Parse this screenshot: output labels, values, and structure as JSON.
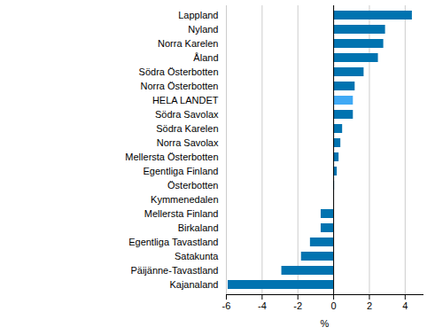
{
  "chart_data": {
    "type": "bar",
    "orientation": "horizontal",
    "categories": [
      "Lappland",
      "Nyland",
      "Norra Karelen",
      "Åland",
      "Södra Österbotten",
      "Norra Österbotten",
      "HELA LANDET",
      "Södra Savolax",
      "Södra Karelen",
      "Norra Savolax",
      "Mellersta Österbotten",
      "Egentliga Finland",
      "Österbotten",
      "Kymmenedalen",
      "Mellersta Finland",
      "Birkaland",
      "Egentliga Tavastland",
      "Satakunta",
      "Päijänne-Tavastland",
      "Kajanaland"
    ],
    "values": [
      4.4,
      2.9,
      2.8,
      2.5,
      1.7,
      1.2,
      1.1,
      1.1,
      0.5,
      0.4,
      0.3,
      0.2,
      0.05,
      0,
      -0.7,
      -0.7,
      -1.3,
      -1.8,
      -2.9,
      -5.9
    ],
    "colors": [
      "#0073b0",
      "#0073b0",
      "#0073b0",
      "#0073b0",
      "#0073b0",
      "#0073b0",
      "#3fa9f5",
      "#0073b0",
      "#0073b0",
      "#0073b0",
      "#0073b0",
      "#0073b0",
      "#0073b0",
      "#0073b0",
      "#0073b0",
      "#0073b0",
      "#0073b0",
      "#0073b0",
      "#0073b0",
      "#0073b0"
    ],
    "x_label": "%",
    "xlim": [
      -6,
      5
    ],
    "xticks": [
      -6,
      -4,
      -2,
      0,
      2,
      4
    ],
    "grid": true
  }
}
